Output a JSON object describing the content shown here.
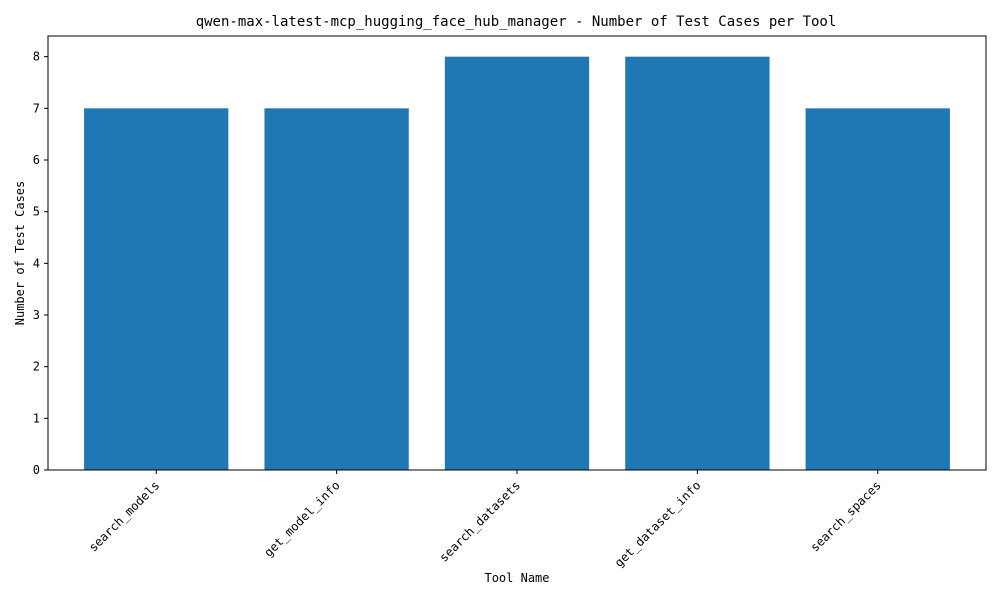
{
  "chart_data": {
    "type": "bar",
    "title": "qwen-max-latest-mcp_hugging_face_hub_manager - Number of Test Cases per Tool",
    "xlabel": "Tool Name",
    "ylabel": "Number of Test Cases",
    "categories": [
      "search_models",
      "get_model_info",
      "search_datasets",
      "get_dataset_info",
      "search_spaces"
    ],
    "values": [
      7,
      7,
      8,
      8,
      7
    ],
    "ylim": [
      0,
      8.4
    ],
    "yticks": [
      0,
      1,
      2,
      3,
      4,
      5,
      6,
      7,
      8
    ],
    "grid": false,
    "bar_color": "#1f77b4",
    "x_tick_rotation_deg": -45
  }
}
